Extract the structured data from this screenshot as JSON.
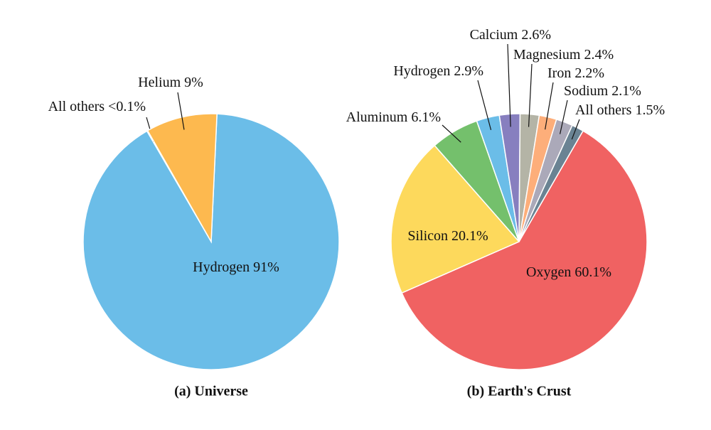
{
  "chart_data": [
    {
      "type": "pie",
      "title": "(a) Universe",
      "categories": [
        "Hydrogen",
        "All others",
        "Helium"
      ],
      "values": [
        91,
        0.1,
        9
      ],
      "value_labels": [
        "91%",
        "<0.1%",
        "9%"
      ],
      "colors": [
        "#6bbde8",
        "#d9d9d9",
        "#fdb94f"
      ]
    },
    {
      "type": "pie",
      "title": "(b) Earth's Crust",
      "categories": [
        "Oxygen",
        "Silicon",
        "Aluminum",
        "Hydrogen",
        "Calcium",
        "Magnesium",
        "Iron",
        "Sodium",
        "All others"
      ],
      "values": [
        60.1,
        20.1,
        6.1,
        2.9,
        2.6,
        2.4,
        2.2,
        2.1,
        1.5
      ],
      "value_labels": [
        "60.1%",
        "20.1%",
        "6.1%",
        "2.9%",
        "2.6%",
        "2.4%",
        "2.2%",
        "2.1%",
        "1.5%"
      ],
      "colors": [
        "#f06262",
        "#fdd95c",
        "#74c06c",
        "#6bbde8",
        "#877fbf",
        "#b4b4a6",
        "#fdae7a",
        "#aba9b9",
        "#6a8393"
      ]
    }
  ]
}
